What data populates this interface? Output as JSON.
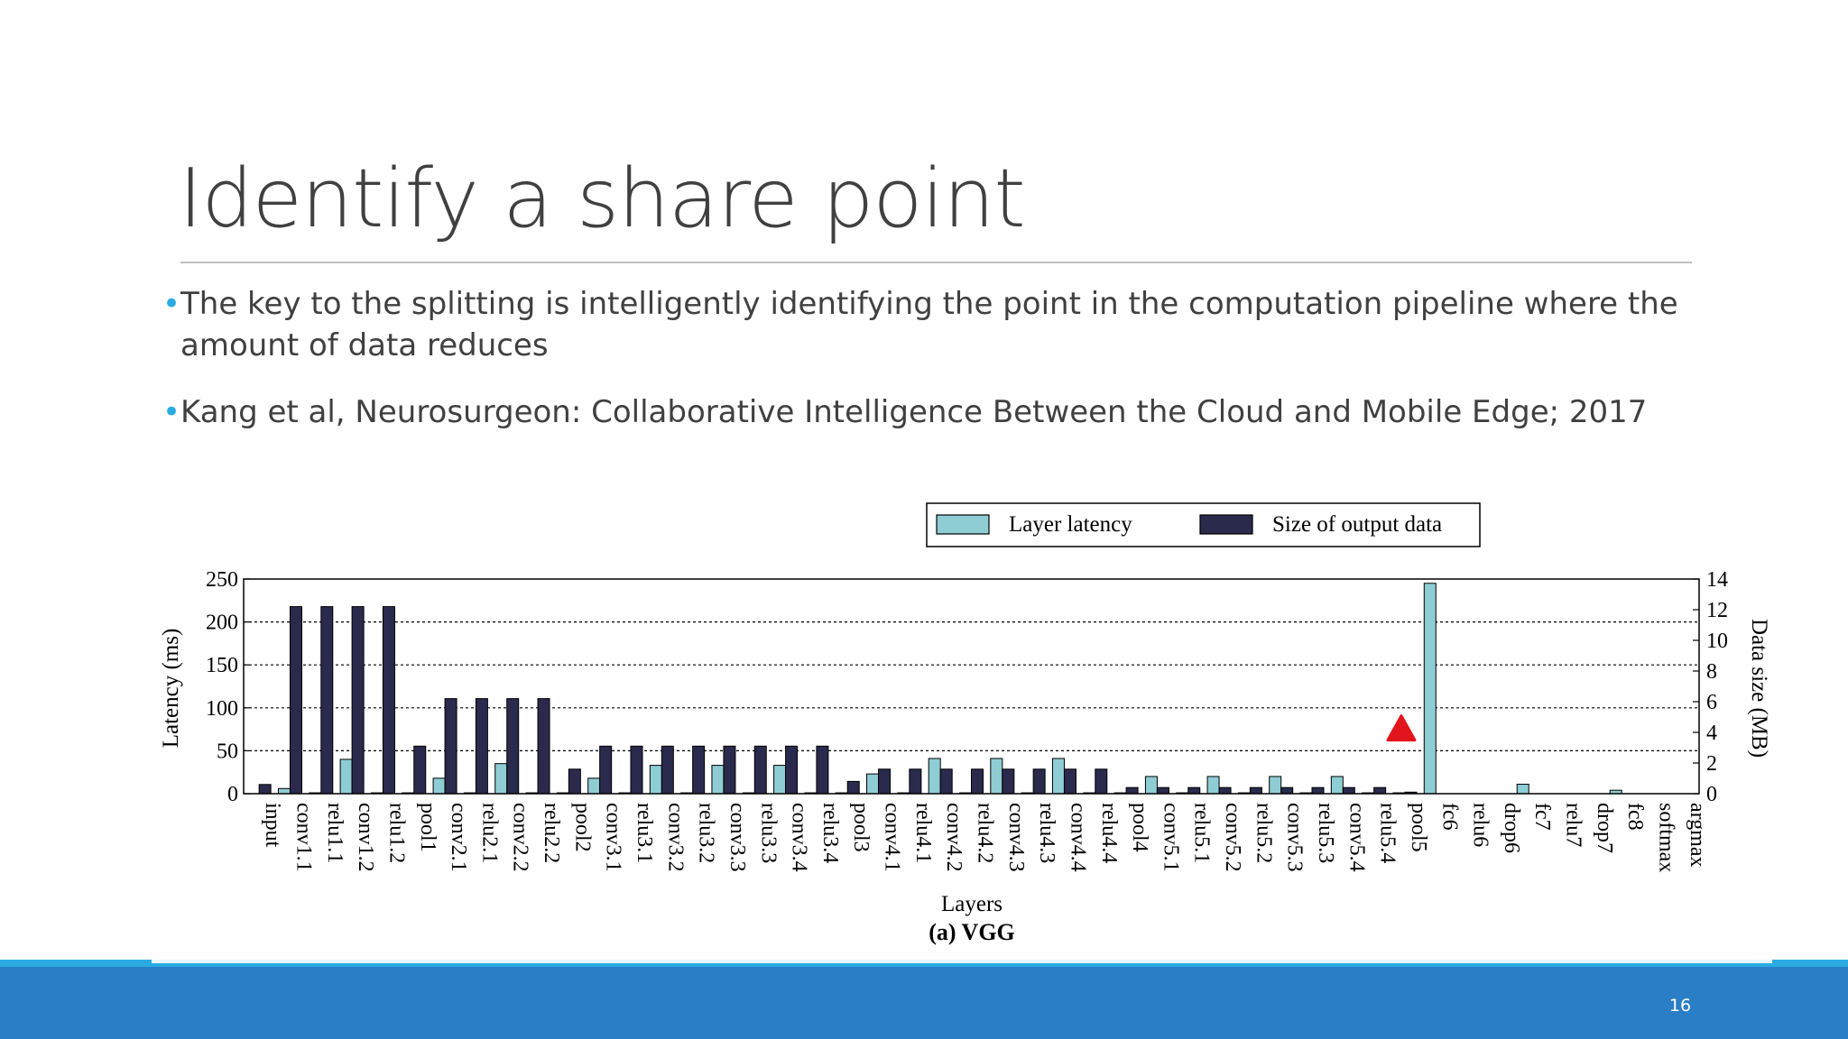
{
  "slide": {
    "title": "Identify a share point",
    "bullets": [
      "The key to the splitting is intelligently identifying the point in the computation pipeline where the amount of data reduces",
      "Kang et al, Neurosurgeon: Collaborative Intelligence Between the Cloud and Mobile Edge; 2017"
    ],
    "page_number": "16",
    "colors": {
      "accent": "#29abe2",
      "footer": "#2a7ec6",
      "title": "#404040"
    }
  },
  "chart_data": {
    "type": "bar",
    "title": "(a) VGG",
    "xlabel": "Layers",
    "ylabel": "Latency (ms)",
    "y2label": "Data size (MB)",
    "ylim": [
      0,
      250
    ],
    "y2lim": [
      0,
      14
    ],
    "yticks": [
      0,
      50,
      100,
      150,
      200,
      250
    ],
    "y2ticks": [
      0,
      2,
      4,
      6,
      8,
      10,
      12,
      14
    ],
    "grid": "horizontal-dotted",
    "legend_placement": "top-right",
    "marker": {
      "symbol": "red-triangle",
      "category": "pool5",
      "y2": 4.2,
      "color": "#e3151c"
    },
    "series_colors": {
      "latency": "#8ecdd3",
      "size": "#2a2a4d"
    },
    "categories": [
      "input",
      "conv1.1",
      "relu1.1",
      "conv1.2",
      "relu1.2",
      "pool1",
      "conv2.1",
      "relu2.1",
      "conv2.2",
      "relu2.2",
      "pool2",
      "conv3.1",
      "relu3.1",
      "conv3.2",
      "relu3.2",
      "conv3.3",
      "relu3.3",
      "conv3.4",
      "relu3.4",
      "pool3",
      "conv4.1",
      "relu4.1",
      "conv4.2",
      "relu4.2",
      "conv4.3",
      "relu4.3",
      "conv4.4",
      "relu4.4",
      "pool4",
      "conv5.1",
      "relu5.1",
      "conv5.2",
      "relu5.2",
      "conv5.3",
      "relu5.3",
      "conv5.4",
      "relu5.4",
      "pool5",
      "fc6",
      "relu6",
      "drop6",
      "fc7",
      "relu7",
      "drop7",
      "fc8",
      "softmax",
      "argmax"
    ],
    "series": [
      {
        "name": "Layer latency",
        "axis": "left",
        "values": [
          0,
          6,
          1,
          40,
          1,
          1,
          18,
          1,
          35,
          1,
          1,
          18,
          1,
          33,
          1,
          33,
          1,
          33,
          1,
          1,
          23,
          1,
          41,
          1,
          41,
          1,
          41,
          1,
          1,
          20,
          1,
          20,
          1,
          20,
          1,
          20,
          1,
          1,
          245,
          0,
          0,
          11,
          0,
          0,
          4,
          0,
          0
        ]
      },
      {
        "name": "Size of output data",
        "axis": "right",
        "values": [
          0.6,
          12.2,
          12.2,
          12.2,
          12.2,
          3.1,
          6.2,
          6.2,
          6.2,
          6.2,
          1.6,
          3.1,
          3.1,
          3.1,
          3.1,
          3.1,
          3.1,
          3.1,
          3.1,
          0.8,
          1.6,
          1.6,
          1.6,
          1.6,
          1.6,
          1.6,
          1.6,
          1.6,
          0.4,
          0.4,
          0.4,
          0.4,
          0.4,
          0.4,
          0.4,
          0.4,
          0.4,
          0.1,
          0,
          0,
          0,
          0,
          0,
          0,
          0,
          0,
          0
        ]
      }
    ]
  }
}
